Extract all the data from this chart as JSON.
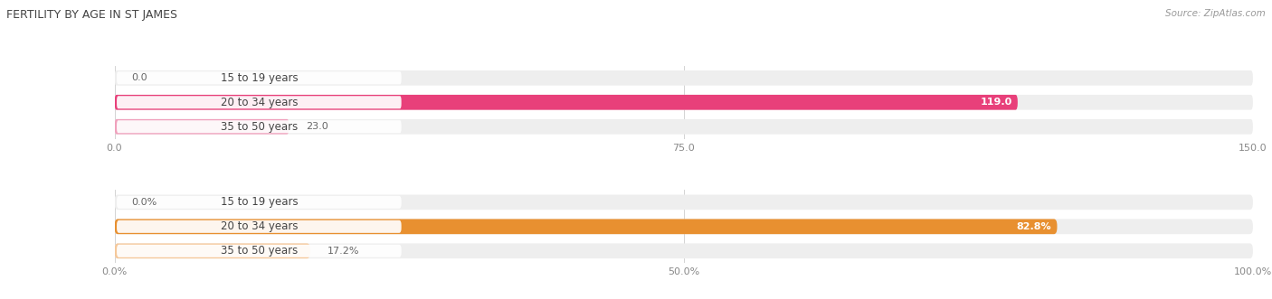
{
  "title": "FERTILITY BY AGE IN ST JAMES",
  "source": "Source: ZipAtlas.com",
  "top_chart": {
    "categories": [
      "15 to 19 years",
      "20 to 34 years",
      "35 to 50 years"
    ],
    "values": [
      0.0,
      119.0,
      23.0
    ],
    "xlim": [
      0,
      150
    ],
    "xticks": [
      0.0,
      75.0,
      150.0
    ],
    "bar_colors": [
      "#f48aab",
      "#e8407a",
      "#f0a0bc"
    ],
    "bar_bg_color": "#eeeeee",
    "label_inside_color": "#ffffff",
    "label_outside_color": "#666666"
  },
  "bottom_chart": {
    "categories": [
      "15 to 19 years",
      "20 to 34 years",
      "35 to 50 years"
    ],
    "values": [
      0.0,
      82.8,
      17.2
    ],
    "xlim": [
      0,
      100
    ],
    "xticks": [
      0.0,
      50.0,
      100.0
    ],
    "xtick_labels": [
      "0.0%",
      "50.0%",
      "100.0%"
    ],
    "bar_colors": [
      "#f5bb82",
      "#e89030",
      "#f5c89a"
    ],
    "bar_bg_color": "#eeeeee",
    "label_inside_color": "#ffffff",
    "label_outside_color": "#666666"
  },
  "figsize": [
    14.06,
    3.31
  ],
  "dpi": 100,
  "background_color": "#ffffff",
  "bar_height": 0.62,
  "label_fontsize": 8,
  "tick_fontsize": 8,
  "title_fontsize": 9,
  "source_fontsize": 7.5,
  "category_fontsize": 8.5
}
